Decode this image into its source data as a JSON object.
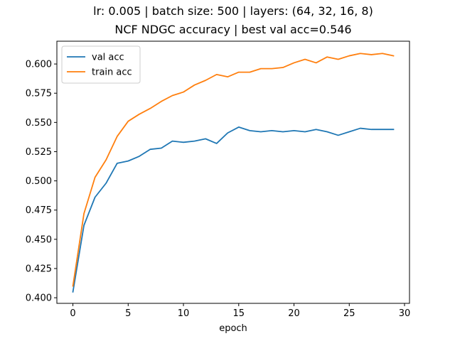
{
  "chart_data": {
    "type": "line",
    "title_line1": "lr: 0.005 | batch size: 500 | layers: (64, 32, 16, 8)",
    "title_line2": "NCF NDGC accuracy | best val acc=0.546",
    "xlabel": "epoch",
    "ylabel": "",
    "xlim": [
      -1.45,
      30.45
    ],
    "ylim": [
      0.3952,
      0.6195
    ],
    "xticks": [
      0,
      5,
      10,
      15,
      20,
      25,
      30
    ],
    "yticks": [
      0.4,
      0.425,
      0.45,
      0.475,
      0.5,
      0.525,
      0.55,
      0.575,
      0.6
    ],
    "ytick_labels": [
      "0.400",
      "0.425",
      "0.450",
      "0.475",
      "0.500",
      "0.525",
      "0.550",
      "0.575",
      "0.600"
    ],
    "grid": false,
    "legend_position": "upper-left",
    "x": [
      0,
      1,
      2,
      3,
      4,
      5,
      6,
      7,
      8,
      9,
      10,
      11,
      12,
      13,
      14,
      15,
      16,
      17,
      18,
      19,
      20,
      21,
      22,
      23,
      24,
      25,
      26,
      27,
      28,
      29
    ],
    "series": [
      {
        "name": "val acc",
        "color": "#1f77b4",
        "values": [
          0.405,
          0.462,
          0.486,
          0.498,
          0.515,
          0.517,
          0.521,
          0.527,
          0.528,
          0.534,
          0.533,
          0.534,
          0.536,
          0.532,
          0.541,
          0.546,
          0.543,
          0.542,
          0.543,
          0.542,
          0.543,
          0.542,
          0.544,
          0.542,
          0.539,
          0.542,
          0.545,
          0.544,
          0.544,
          0.544
        ]
      },
      {
        "name": "train acc",
        "color": "#ff7f0e",
        "values": [
          0.41,
          0.472,
          0.503,
          0.518,
          0.538,
          0.551,
          0.557,
          0.562,
          0.568,
          0.573,
          0.576,
          0.582,
          0.586,
          0.591,
          0.589,
          0.593,
          0.593,
          0.596,
          0.596,
          0.597,
          0.601,
          0.604,
          0.601,
          0.606,
          0.604,
          0.607,
          0.609,
          0.608,
          0.609,
          0.607
        ]
      }
    ]
  }
}
